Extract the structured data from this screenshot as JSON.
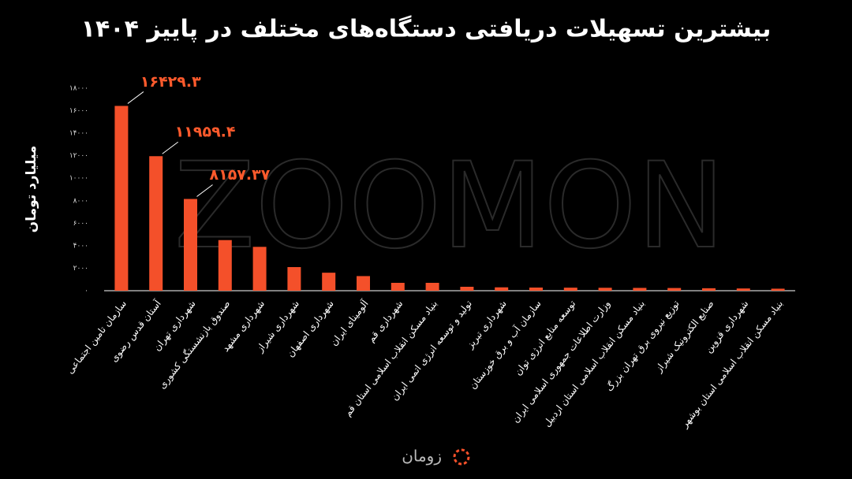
{
  "chart_data": {
    "type": "bar",
    "title": "بیشترین تسهیلات دریافتی دستگاه‌های مختلف در پاییز ۱۴۰۴",
    "y_label": "میلیارد تومان",
    "watermark": "ZOOMON",
    "logo": "زومان",
    "color": "#f4502a",
    "label_color": "#ff5a2c",
    "categories": [
      "سازمان تامین اجتماعی",
      "آستان قدس رضوی",
      "شهرداری تهران",
      "صندوق بازنشستگی کشوری",
      "شهرداری مشهد",
      "شهرداری شیراز",
      "شهرداری اصفهان",
      "آلومینای ایران",
      "شهرداری قم",
      "بنیاد مسکن انقلاب اسلامی استان قم",
      "تولید و توسعه انرژی اتمی ایران",
      "شهرداری تبریز",
      "سازمان آب و برق خوزستان",
      "توسعه منابع انرژی توان",
      "وزارت اطلاعات جمهوری اسلامی ایران",
      "بنیاد مسکن انقلاب اسلامی استان اردبیل",
      "توزیع نیروی برق تهران بزرگ",
      "صنایع الکترونیک شیراز",
      "شهرداری قزوین",
      "بنیاد مسکن انقلاب اسلامی استان بوشهر"
    ],
    "values": [
      16429.3,
      11959.4,
      8157.37,
      4500,
      3900,
      2100,
      1600,
      1300,
      700,
      700,
      350,
      300,
      280,
      270,
      260,
      250,
      240,
      220,
      200,
      180
    ],
    "value_labels": [
      "۱۶۴۲۹.۳",
      "۱۱۹۵۹.۴",
      "۸۱۵۷.۳۷",
      null,
      null,
      null,
      null,
      null,
      null,
      null,
      null,
      null,
      null,
      null,
      null,
      null,
      null,
      null,
      null,
      null
    ],
    "ylim": [
      0,
      18000
    ],
    "yticks": [
      {
        "value": 0,
        "label": "۰"
      },
      {
        "value": 2000,
        "label": "۲۰۰۰"
      },
      {
        "value": 4000,
        "label": "۴۰۰۰"
      },
      {
        "value": 6000,
        "label": "۶۰۰۰"
      },
      {
        "value": 8000,
        "label": "۸۰۰۰"
      },
      {
        "value": 10000,
        "label": "۱۰۰۰۰"
      },
      {
        "value": 12000,
        "label": "۱۲۰۰۰"
      },
      {
        "value": 14000,
        "label": "۱۴۰۰۰"
      },
      {
        "value": 16000,
        "label": "۱۶۰۰۰"
      },
      {
        "value": 18000,
        "label": "۱۸۰۰۰"
      }
    ],
    "grid": false
  }
}
